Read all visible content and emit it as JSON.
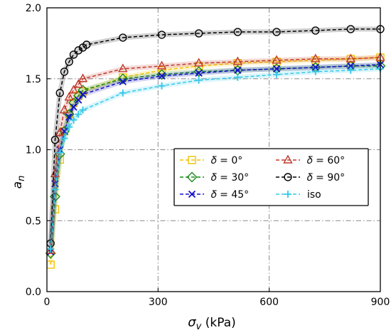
{
  "chart_data": {
    "type": "line",
    "xlabel": "σv (kPa)",
    "xlabel_main": "σ",
    "xlabel_sub": "v",
    "xlabel_unit": " (kPa)",
    "ylabel": "an",
    "ylabel_main": "a",
    "ylabel_sub": "n",
    "xlim": [
      0,
      900
    ],
    "ylim": [
      0,
      2.0
    ],
    "xticks": [
      0,
      300,
      600,
      900
    ],
    "xtick_labels": [
      "0",
      "300",
      "600",
      "900"
    ],
    "yticks": [
      0.0,
      0.5,
      1.0,
      1.5,
      2.0
    ],
    "ytick_labels": [
      "0.0",
      "0.5",
      "1.0",
      "1.5",
      "2.0"
    ],
    "grid": "dash-dot",
    "legend_position": "center-right",
    "series": [
      {
        "name": "δ = 0°",
        "legend": "𝛿 = 0°",
        "color": "#f2c200",
        "marker": "square",
        "x": [
          10,
          22,
          35,
          47,
          60,
          72,
          85,
          97,
          205,
          310,
          410,
          515,
          620,
          725,
          820,
          900
        ],
        "y": [
          0.19,
          0.58,
          0.93,
          1.13,
          1.25,
          1.33,
          1.38,
          1.41,
          1.51,
          1.56,
          1.59,
          1.61,
          1.62,
          1.63,
          1.64,
          1.65
        ]
      },
      {
        "name": "δ = 30°",
        "legend": "𝛿 = 30°",
        "color": "#1a8a1a",
        "marker": "diamond",
        "x": [
          10,
          22,
          35,
          47,
          60,
          72,
          85,
          97,
          205,
          310,
          410,
          515,
          620,
          725,
          820,
          900
        ],
        "y": [
          0.27,
          0.67,
          0.97,
          1.13,
          1.25,
          1.33,
          1.38,
          1.42,
          1.5,
          1.53,
          1.55,
          1.56,
          1.57,
          1.58,
          1.59,
          1.59
        ]
      },
      {
        "name": "δ = 45°",
        "legend": "𝛿 = 45°",
        "color": "#1010c8",
        "marker": "x",
        "x": [
          10,
          22,
          35,
          47,
          60,
          72,
          85,
          97,
          205,
          310,
          410,
          515,
          620,
          725,
          820,
          900
        ],
        "y": [
          0.28,
          0.76,
          1.0,
          1.13,
          1.23,
          1.3,
          1.35,
          1.39,
          1.48,
          1.52,
          1.54,
          1.56,
          1.57,
          1.58,
          1.59,
          1.6
        ]
      },
      {
        "name": "δ = 60°",
        "legend": "𝛿 = 60°",
        "color": "#c0392b",
        "marker": "triangle",
        "x": [
          10,
          22,
          35,
          47,
          60,
          72,
          85,
          97,
          205,
          310,
          410,
          515,
          620,
          725,
          820,
          900
        ],
        "y": [
          0.29,
          0.83,
          1.12,
          1.28,
          1.37,
          1.42,
          1.46,
          1.5,
          1.57,
          1.59,
          1.61,
          1.62,
          1.63,
          1.64,
          1.64,
          1.65
        ]
      },
      {
        "name": "δ = 90°",
        "legend": "𝛿 = 90°",
        "color": "#000000",
        "marker": "circle",
        "x": [
          10,
          22,
          35,
          47,
          60,
          72,
          85,
          97,
          107,
          205,
          310,
          410,
          515,
          620,
          725,
          820,
          900
        ],
        "y": [
          0.34,
          1.07,
          1.4,
          1.55,
          1.62,
          1.67,
          1.7,
          1.72,
          1.74,
          1.79,
          1.81,
          1.82,
          1.83,
          1.83,
          1.84,
          1.85,
          1.85
        ]
      },
      {
        "name": "iso",
        "legend": "iso",
        "color": "#33c8e8",
        "marker": "plus",
        "x": [
          10,
          22,
          35,
          47,
          60,
          72,
          85,
          97,
          205,
          310,
          410,
          515,
          620,
          725,
          820,
          900
        ],
        "y": [
          0.3,
          0.72,
          0.98,
          1.08,
          1.16,
          1.21,
          1.25,
          1.28,
          1.4,
          1.45,
          1.49,
          1.51,
          1.53,
          1.55,
          1.56,
          1.57
        ]
      }
    ]
  }
}
